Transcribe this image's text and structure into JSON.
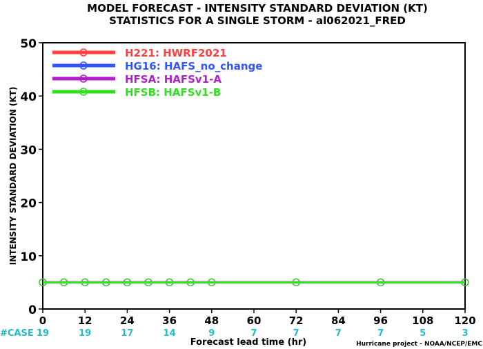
{
  "chart_data": {
    "type": "line",
    "title": "MODEL FORECAST - INTENSITY STANDARD DEVIATION (KT)",
    "subtitle": "STATISTICS FOR A SINGLE STORM - al062021_FRED",
    "xlabel": "Forecast lead time (hr)",
    "ylabel": "INTENSITY STANDARD DEVIATION (KT)",
    "xlim": [
      0,
      120
    ],
    "ylim": [
      0,
      50
    ],
    "xticks": [
      0,
      12,
      24,
      36,
      48,
      60,
      72,
      84,
      96,
      108,
      120
    ],
    "xtick_labels": [
      "0",
      "12",
      "24",
      "36",
      "48",
      "60",
      "72",
      "84",
      "96",
      "108",
      "120"
    ],
    "yticks": [
      0,
      10,
      20,
      30,
      40,
      50
    ],
    "ytick_labels": [
      "0",
      "10",
      "20",
      "30",
      "40",
      "50"
    ],
    "grid": false,
    "legend_position": "top-left",
    "series": [
      {
        "name": "H221: HWRF2021",
        "color": "#ff4040",
        "x": [
          0,
          6,
          12,
          18,
          24,
          30,
          36,
          42,
          48,
          72,
          96,
          120
        ],
        "values": [
          5,
          5,
          5,
          5,
          5,
          5,
          5,
          5,
          5,
          5,
          5,
          5
        ]
      },
      {
        "name": "HG16: HAFS_no_change",
        "color": "#3355ff",
        "x": [
          0,
          6,
          12,
          18,
          24,
          30,
          36,
          42,
          48,
          72,
          96,
          120
        ],
        "values": [
          5,
          5,
          5,
          5,
          5,
          5,
          5,
          5,
          5,
          5,
          5,
          5
        ]
      },
      {
        "name": "HFSA: HAFSv1-A",
        "color": "#b020c8",
        "x": [
          0,
          6,
          12,
          18,
          24,
          30,
          36,
          42,
          48,
          72,
          96,
          120
        ],
        "values": [
          5,
          5,
          5,
          5,
          5,
          5,
          5,
          5,
          5,
          5,
          5,
          5
        ]
      },
      {
        "name": "HFSB: HAFSv1-B",
        "color": "#33dd22",
        "x": [
          0,
          6,
          12,
          18,
          24,
          30,
          36,
          42,
          48,
          72,
          96,
          120
        ],
        "values": [
          5,
          5,
          5,
          5,
          5,
          5,
          5,
          5,
          5,
          5,
          5,
          5
        ]
      }
    ],
    "cases_label": "#CASE",
    "cases": [
      {
        "x": 0,
        "count": "19"
      },
      {
        "x": 12,
        "count": "19"
      },
      {
        "x": 24,
        "count": "17"
      },
      {
        "x": 36,
        "count": "14"
      },
      {
        "x": 48,
        "count": "9"
      },
      {
        "x": 60,
        "count": "7"
      },
      {
        "x": 72,
        "count": "7"
      },
      {
        "x": 84,
        "count": "7"
      },
      {
        "x": 96,
        "count": "7"
      },
      {
        "x": 108,
        "count": "5"
      },
      {
        "x": 120,
        "count": "3"
      }
    ],
    "credit": "Hurricane project - NOAA/NCEP/EMC",
    "colors": {
      "axis": "#000000",
      "cases": "#22bbcc",
      "background": "#ffffff"
    }
  }
}
